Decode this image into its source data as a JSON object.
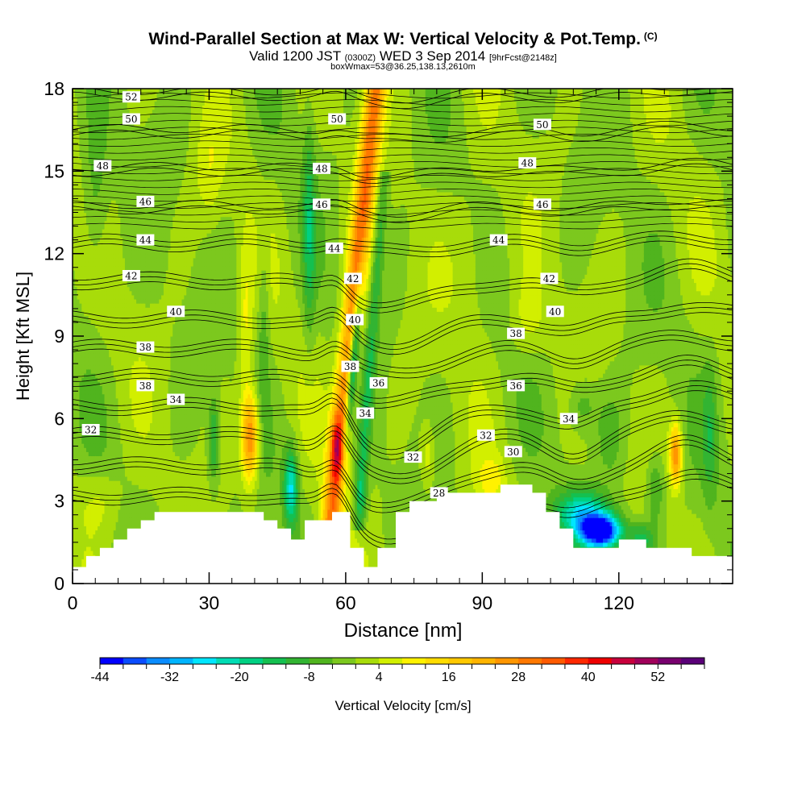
{
  "title": {
    "main": "Wind-Parallel Section at Max W: Vertical Velocity & Pot.Temp.",
    "mark": "(C)",
    "valid_prefix": "Valid 1200 JST",
    "valid_zulu": "(0300Z)",
    "valid_date": "WED 3 Sep 2014",
    "valid_fcst": "[9hrFcst@2148z]",
    "box": "boxWmax=53@36.25,138.13,2610m"
  },
  "chart_data": {
    "type": "heatmap",
    "xlabel": "Distance [nm]",
    "ylabel": "Height [Kft MSL]",
    "xlim": [
      0,
      145
    ],
    "ylim": [
      0,
      18
    ],
    "xticks": [
      "0",
      "30",
      "60",
      "90",
      "120"
    ],
    "yticks": [
      "0",
      "3",
      "6",
      "9",
      "12",
      "15",
      "18"
    ],
    "grid": false,
    "colorbar": {
      "label": "Vertical Velocity [cm/s]",
      "tick_labels": [
        "-44",
        "-32",
        "-20",
        "-8",
        "4",
        "16",
        "28",
        "40",
        "52"
      ],
      "levels": [
        -44,
        -40,
        -36,
        -32,
        -28,
        -24,
        -20,
        -16,
        -12,
        -8,
        -4,
        0,
        4,
        8,
        12,
        16,
        20,
        24,
        28,
        32,
        36,
        40,
        44,
        48,
        52,
        56
      ],
      "colors": [
        "#0000ff",
        "#0a4cff",
        "#0a8cff",
        "#00b4ff",
        "#00e6ff",
        "#00dcb4",
        "#00d082",
        "#14c050",
        "#32b432",
        "#50b41e",
        "#7cc81e",
        "#a8dc0a",
        "#d2ef00",
        "#fff200",
        "#ffdc00",
        "#ffc800",
        "#ffb400",
        "#ff9600",
        "#ff7800",
        "#ff5a00",
        "#ff2800",
        "#ee0000",
        "#c8003c",
        "#a0005a",
        "#78006e",
        "#5a0078"
      ]
    },
    "theta_contour_labels": [
      {
        "value": "52",
        "x": 12.9,
        "y": 17.7
      },
      {
        "value": "50",
        "x": 12.9,
        "y": 16.9
      },
      {
        "value": "48",
        "x": 6.6,
        "y": 15.2
      },
      {
        "value": "46",
        "x": 16.0,
        "y": 13.9
      },
      {
        "value": "44",
        "x": 16.0,
        "y": 12.5
      },
      {
        "value": "42",
        "x": 12.9,
        "y": 11.2
      },
      {
        "value": "40",
        "x": 22.7,
        "y": 9.9
      },
      {
        "value": "38",
        "x": 16.0,
        "y": 8.6
      },
      {
        "value": "38",
        "x": 16.0,
        "y": 7.2
      },
      {
        "value": "34",
        "x": 22.7,
        "y": 6.7
      },
      {
        "value": "32",
        "x": 4.0,
        "y": 5.6
      },
      {
        "value": "50",
        "x": 58.1,
        "y": 16.9
      },
      {
        "value": "48",
        "x": 54.7,
        "y": 15.1
      },
      {
        "value": "46",
        "x": 54.7,
        "y": 13.8
      },
      {
        "value": "44",
        "x": 57.5,
        "y": 12.2
      },
      {
        "value": "42",
        "x": 61.6,
        "y": 11.1
      },
      {
        "value": "40",
        "x": 62.0,
        "y": 9.6
      },
      {
        "value": "38",
        "x": 61.0,
        "y": 7.9
      },
      {
        "value": "36",
        "x": 67.2,
        "y": 7.3
      },
      {
        "value": "34",
        "x": 64.3,
        "y": 6.2
      },
      {
        "value": "32",
        "x": 74.8,
        "y": 4.6
      },
      {
        "value": "28",
        "x": 80.5,
        "y": 3.3
      },
      {
        "value": "32",
        "x": 90.8,
        "y": 5.4
      },
      {
        "value": "30",
        "x": 96.8,
        "y": 4.8
      },
      {
        "value": "50",
        "x": 103.2,
        "y": 16.7
      },
      {
        "value": "48",
        "x": 99.9,
        "y": 15.3
      },
      {
        "value": "46",
        "x": 103.2,
        "y": 13.8
      },
      {
        "value": "44",
        "x": 93.6,
        "y": 12.5
      },
      {
        "value": "42",
        "x": 104.7,
        "y": 11.1
      },
      {
        "value": "40",
        "x": 106.0,
        "y": 9.9
      },
      {
        "value": "38",
        "x": 97.4,
        "y": 9.1
      },
      {
        "value": "36",
        "x": 97.4,
        "y": 7.2
      },
      {
        "value": "34",
        "x": 109.0,
        "y": 6.0
      }
    ],
    "theta_contour_levels": [
      28,
      30,
      32,
      34,
      36,
      38,
      40,
      42,
      44,
      46,
      48,
      50,
      52
    ],
    "terrain_kft": [
      [
        0,
        0.6
      ],
      [
        3,
        0.6
      ],
      [
        3,
        1.0
      ],
      [
        6,
        1.0
      ],
      [
        6,
        1.3
      ],
      [
        9,
        1.3
      ],
      [
        9,
        1.6
      ],
      [
        12,
        1.6
      ],
      [
        12,
        2.0
      ],
      [
        15,
        2.0
      ],
      [
        15,
        2.3
      ],
      [
        18,
        2.3
      ],
      [
        18,
        2.6
      ],
      [
        42,
        2.6
      ],
      [
        42,
        2.3
      ],
      [
        45,
        2.3
      ],
      [
        45,
        2.0
      ],
      [
        48,
        2.0
      ],
      [
        48,
        1.6
      ],
      [
        51,
        1.6
      ],
      [
        51,
        2.3
      ],
      [
        57,
        2.3
      ],
      [
        57,
        2.6
      ],
      [
        61,
        2.6
      ],
      [
        61,
        1.3
      ],
      [
        64,
        1.3
      ],
      [
        64,
        0.6
      ],
      [
        67,
        0.6
      ],
      [
        67,
        1.3
      ],
      [
        71,
        1.3
      ],
      [
        71,
        2.6
      ],
      [
        74,
        2.6
      ],
      [
        74,
        3.0
      ],
      [
        80,
        3.0
      ],
      [
        80,
        3.3
      ],
      [
        94,
        3.3
      ],
      [
        94,
        3.6
      ],
      [
        101,
        3.6
      ],
      [
        101,
        3.3
      ],
      [
        104,
        3.3
      ],
      [
        104,
        2.6
      ],
      [
        107,
        2.6
      ],
      [
        107,
        2.0
      ],
      [
        110,
        2.0
      ],
      [
        110,
        1.3
      ],
      [
        120,
        1.3
      ],
      [
        120,
        1.6
      ],
      [
        126,
        1.6
      ],
      [
        126,
        1.3
      ],
      [
        136,
        1.3
      ],
      [
        136,
        1.0
      ],
      [
        145,
        1.0
      ]
    ],
    "vertical_velocity_features": [
      {
        "kind": "updraft",
        "x": 58,
        "y": 5.0,
        "peak": 48
      },
      {
        "kind": "updraft",
        "x": 62.5,
        "y": 14.0,
        "peak": 26
      },
      {
        "kind": "updraft",
        "x": 39,
        "y": 5.3,
        "peak": 28
      },
      {
        "kind": "updraft",
        "x": 132.5,
        "y": 4.7,
        "peak": 26
      },
      {
        "kind": "downdraft",
        "x": 116,
        "y": 1.9,
        "peak": -44
      },
      {
        "kind": "downdraft",
        "x": 60.5,
        "y": 8.5,
        "peak": -30
      },
      {
        "kind": "downdraft",
        "x": 48,
        "y": 3.5,
        "peak": -22
      }
    ]
  }
}
